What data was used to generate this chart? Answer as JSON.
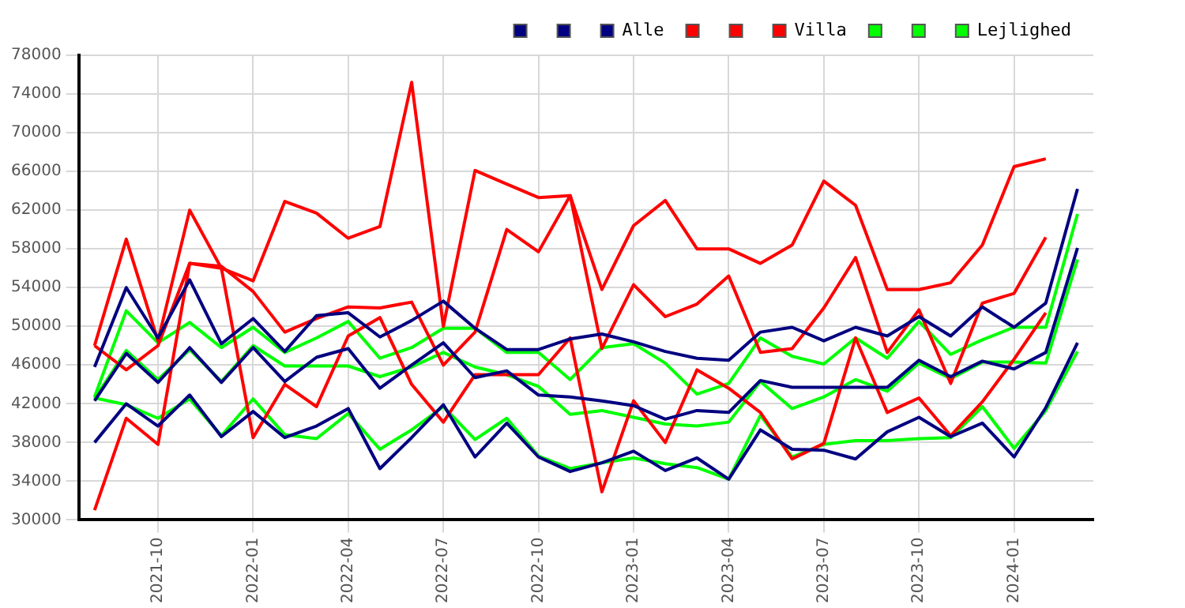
{
  "chart_data": {
    "type": "line",
    "x": [
      "2021-08",
      "2021-09",
      "2021-10",
      "2021-11",
      "2021-12",
      "2022-01",
      "2022-02",
      "2022-03",
      "2022-04",
      "2022-05",
      "2022-06",
      "2022-07",
      "2022-08",
      "2022-09",
      "2022-10",
      "2022-11",
      "2022-12",
      "2023-01",
      "2023-02",
      "2023-03",
      "2023-04",
      "2023-05",
      "2023-06",
      "2023-07",
      "2023-08",
      "2023-09",
      "2023-10",
      "2023-11",
      "2023-12",
      "2024-01",
      "2024-02",
      "2024-03"
    ],
    "series": [
      {
        "color": "#000080",
        "values": [
          45800,
          54000,
          48800,
          54800,
          48200,
          50800,
          47400,
          51100,
          51400,
          48900,
          50600,
          52600,
          49800,
          47600,
          47600,
          48700,
          49200,
          48400,
          47400,
          46700,
          46500,
          49400,
          49900,
          48500,
          49900,
          49000,
          51000,
          49000,
          52000,
          49900,
          52400,
          64200
        ]
      },
      {
        "color": "#000080",
        "values": [
          42300,
          47200,
          44200,
          47800,
          44200,
          47800,
          44300,
          46800,
          47700,
          43600,
          46000,
          48300,
          44700,
          45400,
          42900,
          42700,
          42300,
          41800,
          40400,
          41300,
          41100,
          44400,
          43700,
          43700,
          43700,
          43700,
          46500,
          44800,
          46400,
          45600,
          47300,
          58100
        ]
      },
      {
        "name": "Alle",
        "color": "#000080",
        "values": [
          38000,
          42000,
          39700,
          42900,
          38600,
          41200,
          38500,
          39700,
          41500,
          35300,
          38500,
          41900,
          36500,
          40000,
          36500,
          35000,
          35900,
          37100,
          35100,
          36400,
          34200,
          39300,
          37300,
          37200,
          36300,
          39100,
          40600,
          38600,
          40000,
          36500,
          41600,
          48300
        ]
      },
      {
        "color": "#ff0000",
        "values": [
          48000,
          59000,
          48500,
          62000,
          56000,
          54700,
          62900,
          61700,
          59100,
          60300,
          75200,
          50000,
          66100,
          64700,
          63300,
          63500,
          53800,
          60400,
          63000,
          58000,
          58000,
          56500,
          58400,
          65000,
          62500,
          53800,
          53800,
          54500,
          58400,
          66500,
          67300,
          null
        ]
      },
      {
        "color": "#ff0000",
        "values": [
          48000,
          45500,
          48000,
          56500,
          56200,
          53600,
          49400,
          50800,
          52000,
          51900,
          52500,
          46000,
          49400,
          60000,
          57700,
          63500,
          47700,
          54300,
          51000,
          52300,
          55200,
          47300,
          47700,
          51900,
          57100,
          47300,
          51700,
          44100,
          52400,
          53400,
          59200,
          null
        ]
      },
      {
        "name": "Villa",
        "color": "#ff0000",
        "values": [
          31000,
          40500,
          37800,
          56500,
          56000,
          38500,
          44000,
          41700,
          49000,
          50900,
          44000,
          40100,
          45000,
          45000,
          45000,
          48800,
          32900,
          42300,
          38000,
          45500,
          43600,
          41100,
          36300,
          37900,
          48800,
          41100,
          42600,
          38700,
          42200,
          46600,
          51400,
          null
        ]
      },
      {
        "color": "#00ff00",
        "values": [
          42700,
          51600,
          48300,
          50400,
          47800,
          49900,
          47300,
          48800,
          50500,
          46700,
          47800,
          49800,
          49800,
          47300,
          47300,
          44500,
          47800,
          48200,
          46200,
          43000,
          44100,
          48800,
          46900,
          46100,
          48800,
          46700,
          50500,
          47100,
          48600,
          49900,
          49900,
          61600
        ]
      },
      {
        "color": "#00ff00",
        "values": [
          42500,
          47500,
          44500,
          47600,
          44300,
          48000,
          45900,
          45900,
          45900,
          44800,
          45800,
          47300,
          45800,
          45000,
          43800,
          40900,
          41300,
          40600,
          39900,
          39700,
          40100,
          44300,
          41500,
          42700,
          44500,
          43300,
          46200,
          44600,
          46300,
          46300,
          46200,
          56900
        ]
      },
      {
        "name": "Lejlighed",
        "color": "#00ff00",
        "values": [
          42600,
          41900,
          40500,
          42500,
          38700,
          42500,
          38800,
          38400,
          41000,
          37300,
          39300,
          41700,
          38300,
          40500,
          36600,
          35300,
          35900,
          36400,
          35800,
          35400,
          34200,
          40800,
          36500,
          37800,
          38200,
          38200,
          38400,
          38500,
          41700,
          37400,
          41300,
          47400
        ]
      }
    ],
    "xlim": [
      "2021-07-16",
      "2024-03-16"
    ],
    "xticks": [
      "2021-10",
      "2022-01",
      "2022-04",
      "2022-07",
      "2022-10",
      "2023-01",
      "2023-04",
      "2023-07",
      "2023-10",
      "2024-01"
    ],
    "ylim": [
      30000,
      78000
    ],
    "yticks": [
      30000,
      34000,
      38000,
      42000,
      46000,
      50000,
      54000,
      58000,
      62000,
      66000,
      70000,
      74000,
      78000
    ],
    "grid": true,
    "legend": "top right",
    "marker": "none",
    "line_style": "solid"
  }
}
